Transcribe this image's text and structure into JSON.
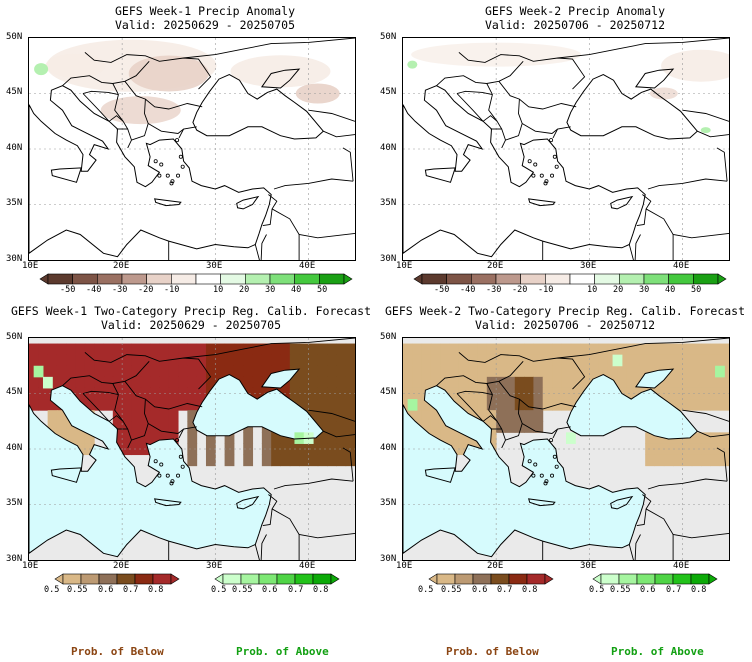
{
  "panels": [
    {
      "title": "GEFS Week-1 Precip Anomaly",
      "valid": "Valid: 20250629 - 20250705"
    },
    {
      "title": "GEFS Week-2 Precip Anomaly",
      "valid": "Valid: 20250706 - 20250712"
    },
    {
      "title": "GEFS Week-1 Two-Category Precip Reg. Calib. Forecast",
      "valid": "Valid: 20250629 - 20250705"
    },
    {
      "title": "GEFS Week-2 Two-Category Precip Reg. Calib. Forecast",
      "valid": "Valid: 20250706 - 20250712"
    }
  ],
  "axes": {
    "lat_labels": [
      "50N",
      "45N",
      "40N",
      "35N",
      "30N"
    ],
    "lon_labels": [
      "10E",
      "20E",
      "30E",
      "40E"
    ]
  },
  "anomaly_colorbar": {
    "ticks": [
      "-50",
      "-40",
      "-30",
      "-20",
      "-10",
      "10",
      "20",
      "30",
      "40",
      "50"
    ],
    "colors": [
      "#5c3a2e",
      "#7d5446",
      "#9a7062",
      "#bd998d",
      "#e8d2c8",
      "#f6ece6",
      "#ffffff",
      "#e4fae4",
      "#b4f0b0",
      "#7ee07a",
      "#44c83e",
      "#1aa014"
    ]
  },
  "prob_below_colorbar": {
    "ticks": [
      "0.5",
      "0.55",
      "0.6",
      "0.7",
      "0.8"
    ],
    "colors": [
      "#d9b887",
      "#bc9a73",
      "#8e7058",
      "#7a4c1e",
      "#8a2a12",
      "#a52a2a"
    ],
    "label": "Prob. of Below",
    "label_color": "#8b4513"
  },
  "prob_above_colorbar": {
    "ticks": [
      "0.5",
      "0.55",
      "0.6",
      "0.7",
      "0.8"
    ],
    "colors": [
      "#ccffcc",
      "#a6f5a0",
      "#7de874",
      "#4fd446",
      "#22c21a",
      "#0caa08"
    ],
    "label": "Prob. of Above",
    "label_color": "#12a012"
  }
}
